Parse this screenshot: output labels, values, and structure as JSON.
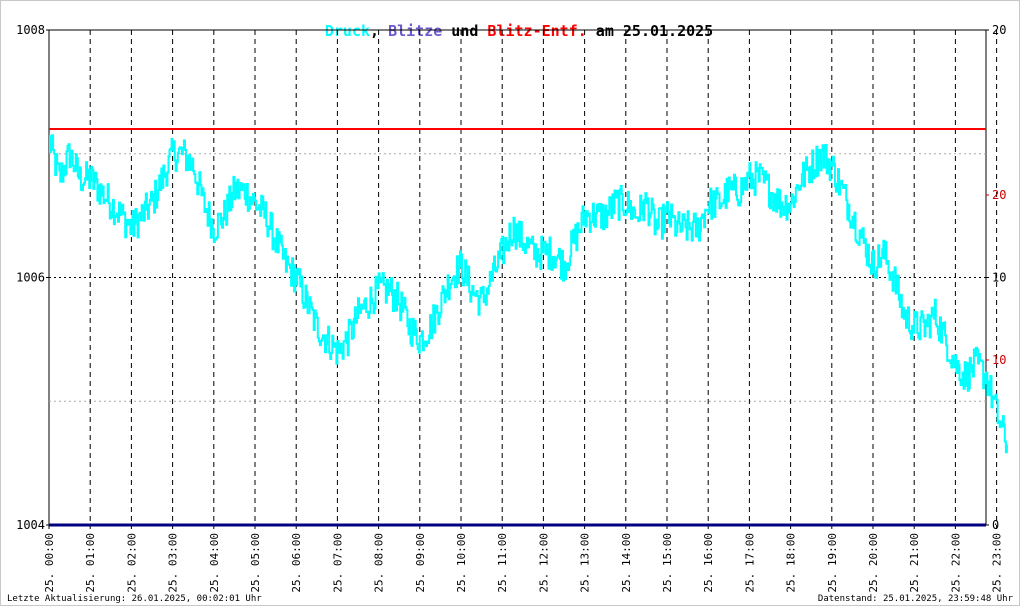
{
  "title": {
    "parts": [
      {
        "text": "Druck",
        "color": "#00ffff"
      },
      {
        "text": ", ",
        "color": "#000000"
      },
      {
        "text": "Blitze",
        "color": "#6a5acd"
      },
      {
        "text": " und ",
        "color": "#000000"
      },
      {
        "text": "Blitz-Entf.",
        "color": "#ff0000"
      },
      {
        "text": " am 25.01.2025",
        "color": "#000000"
      }
    ]
  },
  "footer": {
    "left": "Letzte Aktualisierung: 26.01.2025, 00:02:01 Uhr",
    "right": "Datenstand: 25.01.2025, 23:59:48 Uhr"
  },
  "chart_data": {
    "type": "line",
    "grid": true,
    "x_tick_labels": [
      "25. 00:00",
      "25. 01:00",
      "25. 02:00",
      "25. 03:00",
      "25. 04:00",
      "25. 05:00",
      "25. 06:00",
      "25. 07:00",
      "25. 08:00",
      "25. 09:00",
      "25. 10:00",
      "25. 11:00",
      "25. 12:00",
      "25. 13:00",
      "25. 14:00",
      "25. 15:00",
      "25. 16:00",
      "25. 17:00",
      "25. 18:00",
      "25. 19:00",
      "25. 20:00",
      "25. 21:00",
      "25. 22:00",
      "25. 23:00"
    ],
    "x_range_hours": [
      0,
      23.25
    ],
    "y_left": {
      "ticks": [
        "1004",
        "1006",
        "1008"
      ],
      "range": [
        1004,
        1008
      ],
      "color": "#000000"
    },
    "y_right_black": {
      "ticks": [
        "0",
        "10",
        "20"
      ],
      "range": [
        0,
        20
      ],
      "color": "#000000"
    },
    "y_right_red": {
      "ticks": [
        "10",
        "20"
      ],
      "values": [
        10,
        20
      ],
      "color": "#cc0000"
    },
    "series": [
      {
        "name": "Druck",
        "color": "#00ffff",
        "axis": "left",
        "points": [
          [
            0.0,
            1007.1
          ],
          [
            0.25,
            1006.8
          ],
          [
            0.5,
            1007.0
          ],
          [
            0.75,
            1006.8
          ],
          [
            1.0,
            1006.8
          ],
          [
            1.25,
            1006.7
          ],
          [
            1.5,
            1006.6
          ],
          [
            1.75,
            1006.5
          ],
          [
            2.0,
            1006.4
          ],
          [
            2.25,
            1006.5
          ],
          [
            2.5,
            1006.6
          ],
          [
            2.75,
            1006.8
          ],
          [
            3.0,
            1007.0
          ],
          [
            3.25,
            1007.0
          ],
          [
            3.5,
            1006.9
          ],
          [
            3.75,
            1006.6
          ],
          [
            4.0,
            1006.4
          ],
          [
            4.25,
            1006.5
          ],
          [
            4.5,
            1006.7
          ],
          [
            4.75,
            1006.7
          ],
          [
            5.0,
            1006.6
          ],
          [
            5.25,
            1006.5
          ],
          [
            5.5,
            1006.3
          ],
          [
            5.75,
            1006.1
          ],
          [
            6.0,
            1006.0
          ],
          [
            6.25,
            1005.8
          ],
          [
            6.5,
            1005.6
          ],
          [
            6.75,
            1005.5
          ],
          [
            7.0,
            1005.4
          ],
          [
            7.25,
            1005.5
          ],
          [
            7.5,
            1005.7
          ],
          [
            7.75,
            1005.8
          ],
          [
            8.0,
            1005.9
          ],
          [
            8.25,
            1005.9
          ],
          [
            8.5,
            1005.8
          ],
          [
            8.75,
            1005.6
          ],
          [
            9.0,
            1005.5
          ],
          [
            9.25,
            1005.6
          ],
          [
            9.5,
            1005.8
          ],
          [
            9.75,
            1006.0
          ],
          [
            10.0,
            1006.1
          ],
          [
            10.25,
            1005.9
          ],
          [
            10.5,
            1005.8
          ],
          [
            10.75,
            1006.0
          ],
          [
            11.0,
            1006.2
          ],
          [
            11.25,
            1006.4
          ],
          [
            11.5,
            1006.3
          ],
          [
            11.75,
            1006.2
          ],
          [
            12.0,
            1006.2
          ],
          [
            12.25,
            1006.2
          ],
          [
            12.5,
            1006.1
          ],
          [
            12.75,
            1006.3
          ],
          [
            13.0,
            1006.5
          ],
          [
            13.25,
            1006.5
          ],
          [
            13.5,
            1006.5
          ],
          [
            13.75,
            1006.6
          ],
          [
            14.0,
            1006.6
          ],
          [
            14.25,
            1006.5
          ],
          [
            14.5,
            1006.6
          ],
          [
            14.75,
            1006.4
          ],
          [
            15.0,
            1006.5
          ],
          [
            15.25,
            1006.4
          ],
          [
            15.5,
            1006.4
          ],
          [
            15.75,
            1006.4
          ],
          [
            16.0,
            1006.6
          ],
          [
            16.25,
            1006.6
          ],
          [
            16.5,
            1006.7
          ],
          [
            16.75,
            1006.7
          ],
          [
            17.0,
            1006.8
          ],
          [
            17.25,
            1006.8
          ],
          [
            17.5,
            1006.7
          ],
          [
            17.75,
            1006.6
          ],
          [
            18.0,
            1006.6
          ],
          [
            18.25,
            1006.8
          ],
          [
            18.5,
            1006.9
          ],
          [
            18.75,
            1007.0
          ],
          [
            19.0,
            1006.9
          ],
          [
            19.25,
            1006.7
          ],
          [
            19.5,
            1006.5
          ],
          [
            19.75,
            1006.3
          ],
          [
            20.0,
            1006.1
          ],
          [
            20.25,
            1006.2
          ],
          [
            20.5,
            1006.0
          ],
          [
            20.75,
            1005.7
          ],
          [
            21.0,
            1005.6
          ],
          [
            21.25,
            1005.6
          ],
          [
            21.5,
            1005.7
          ],
          [
            21.75,
            1005.5
          ],
          [
            22.0,
            1005.3
          ],
          [
            22.25,
            1005.2
          ],
          [
            22.5,
            1005.3
          ],
          [
            22.75,
            1005.2
          ],
          [
            23.0,
            1004.9
          ],
          [
            23.25,
            1004.65
          ]
        ]
      },
      {
        "name": "Blitz-Entf.",
        "color": "#ff0000",
        "axis": "right",
        "points": [
          [
            0,
            1007.2
          ],
          [
            23.25,
            1007.2
          ]
        ]
      },
      {
        "name": "Blitze",
        "color": "#000080",
        "axis": "right",
        "points": [
          [
            0,
            1004
          ],
          [
            23.25,
            1004
          ]
        ]
      }
    ]
  }
}
